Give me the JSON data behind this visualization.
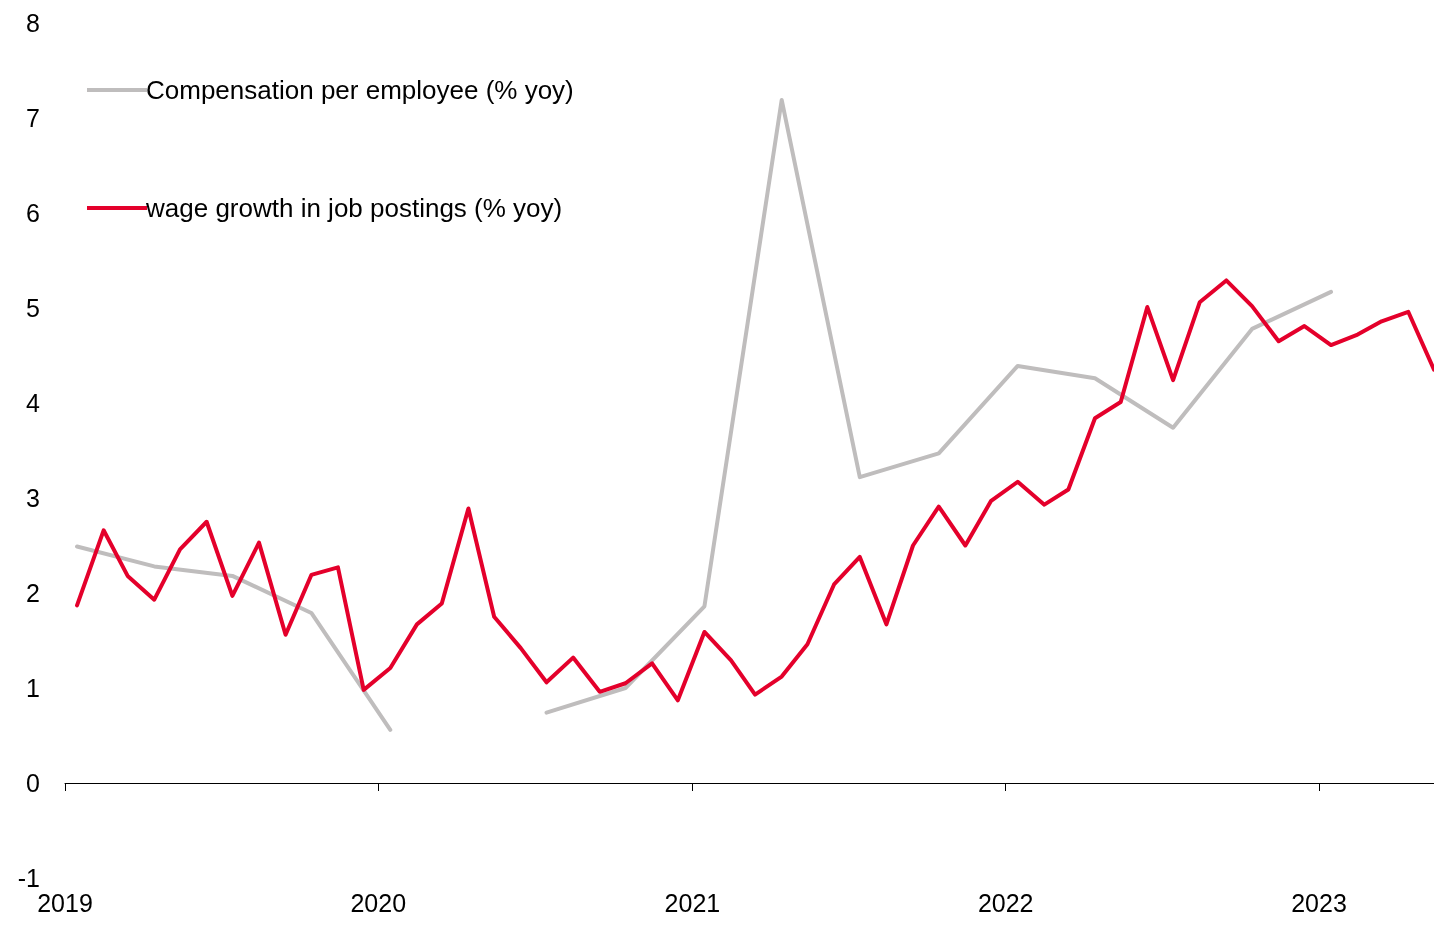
{
  "chart_data": {
    "type": "line",
    "legend": "top left",
    "marker": "none",
    "line_style": "solid",
    "xlim": [
      "2019-01-01",
      "2023-05-15"
    ],
    "xticks": [
      "2019",
      "2020",
      "2021",
      "2022",
      "2023"
    ],
    "ylim": [
      -1,
      8
    ],
    "yticks": [
      -1,
      0,
      1,
      2,
      3,
      4,
      5,
      6,
      7,
      8
    ],
    "series": [
      {
        "name": "Compensation per employee (% yoy)",
        "color": "#bfbdbd",
        "x": [
          "2019-01-15",
          "2019-04-15",
          "2019-07-15",
          "2019-10-15",
          "2020-01-15",
          "2020-04-15",
          "2020-07-15",
          "2020-10-15",
          "2021-01-15",
          "2021-04-15",
          "2021-07-15",
          "2021-10-15",
          "2022-01-15",
          "2022-04-15",
          "2022-07-15",
          "2022-10-15",
          "2023-01-15"
        ],
        "values": [
          2.49,
          2.28,
          2.18,
          1.79,
          0.56,
          null,
          0.74,
          1.0,
          1.86,
          7.19,
          3.22,
          3.47,
          4.39,
          4.26,
          3.74,
          4.78,
          5.17
        ]
      },
      {
        "name": "wage growth in job postings (% yoy)",
        "color": "#e4002b",
        "x": [
          "2019-01-15",
          "2019-02-15",
          "2019-03-15",
          "2019-04-15",
          "2019-05-15",
          "2019-06-15",
          "2019-07-15",
          "2019-08-15",
          "2019-09-15",
          "2019-10-15",
          "2019-11-15",
          "2019-12-15",
          "2020-01-15",
          "2020-02-15",
          "2020-03-15",
          "2020-04-15",
          "2020-05-15",
          "2020-06-15",
          "2020-07-15",
          "2020-08-15",
          "2020-09-15",
          "2020-10-15",
          "2020-11-15",
          "2020-12-15",
          "2021-01-15",
          "2021-02-15",
          "2021-03-15",
          "2021-04-15",
          "2021-05-15",
          "2021-06-15",
          "2021-07-15",
          "2021-08-15",
          "2021-09-15",
          "2021-10-15",
          "2021-11-15",
          "2021-12-15",
          "2022-01-15",
          "2022-02-15",
          "2022-03-15",
          "2022-04-15",
          "2022-05-15",
          "2022-06-15",
          "2022-07-15",
          "2022-08-15",
          "2022-09-15",
          "2022-10-15",
          "2022-11-15",
          "2022-12-15",
          "2023-01-15",
          "2023-02-15",
          "2023-03-15",
          "2023-04-15",
          "2023-05-15"
        ],
        "values": [
          1.87,
          2.66,
          2.18,
          1.93,
          2.46,
          2.75,
          1.97,
          2.53,
          1.56,
          2.19,
          2.27,
          0.98,
          1.21,
          1.67,
          1.89,
          2.89,
          1.75,
          1.42,
          1.06,
          1.32,
          0.96,
          1.05,
          1.26,
          0.87,
          1.59,
          1.29,
          0.93,
          1.12,
          1.46,
          2.09,
          2.38,
          1.67,
          2.5,
          2.91,
          2.5,
          2.97,
          3.17,
          2.93,
          3.09,
          3.84,
          4.01,
          5.01,
          4.24,
          5.06,
          5.29,
          5.02,
          4.65,
          4.81,
          4.61,
          4.72,
          4.86,
          4.96,
          4.35
        ]
      }
    ]
  }
}
